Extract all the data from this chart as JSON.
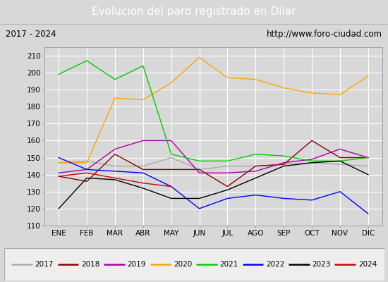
{
  "title": "Evolucion del paro registrado en Dilar",
  "subtitle_left": "2017 - 2024",
  "subtitle_right": "http://www.foro-ciudad.com",
  "xlabel_months": [
    "ENE",
    "FEB",
    "MAR",
    "ABR",
    "MAY",
    "JUN",
    "JUL",
    "AGO",
    "SEP",
    "OCT",
    "NOV",
    "DIC"
  ],
  "ylim": [
    110,
    215
  ],
  "yticks": [
    110,
    120,
    130,
    140,
    150,
    160,
    170,
    180,
    190,
    200,
    210
  ],
  "series": {
    "2017": {
      "color": "#aaaaaa",
      "values": [
        147,
        148,
        145,
        145,
        150,
        143,
        145,
        145,
        146,
        147,
        146,
        145
      ]
    },
    "2018": {
      "color": "#8b0000",
      "values": [
        139,
        136,
        152,
        143,
        143,
        143,
        133,
        145,
        146,
        160,
        150,
        150
      ]
    },
    "2019": {
      "color": "#aa00aa",
      "values": [
        141,
        143,
        155,
        160,
        160,
        141,
        141,
        142,
        147,
        149,
        155,
        150
      ]
    },
    "2020": {
      "color": "#ffa500",
      "values": [
        147,
        147,
        185,
        184,
        194,
        209,
        197,
        196,
        191,
        188,
        187,
        198
      ]
    },
    "2021": {
      "color": "#00cc00",
      "values": [
        199,
        207,
        196,
        204,
        152,
        148,
        148,
        152,
        151,
        148,
        148,
        150
      ]
    },
    "2022": {
      "color": "#0000ff",
      "values": [
        150,
        143,
        142,
        141,
        133,
        120,
        126,
        128,
        126,
        125,
        130,
        117
      ]
    },
    "2023": {
      "color": "#000000",
      "values": [
        120,
        138,
        137,
        132,
        126,
        126,
        131,
        138,
        145,
        147,
        148,
        140
      ]
    },
    "2024": {
      "color": "#cc0000",
      "values": [
        139,
        141,
        138,
        135,
        133,
        null,
        null,
        null,
        null,
        null,
        null,
        null
      ]
    }
  },
  "bg_color": "#d8d8d8",
  "plot_bg_color": "#d8d8d8",
  "title_bg_color": "#4f86c6",
  "title_text_color": "#ffffff",
  "subtitle_bg_color": "#eeeeee",
  "grid_color": "#ffffff",
  "legend_bg_color": "#eeeeee"
}
